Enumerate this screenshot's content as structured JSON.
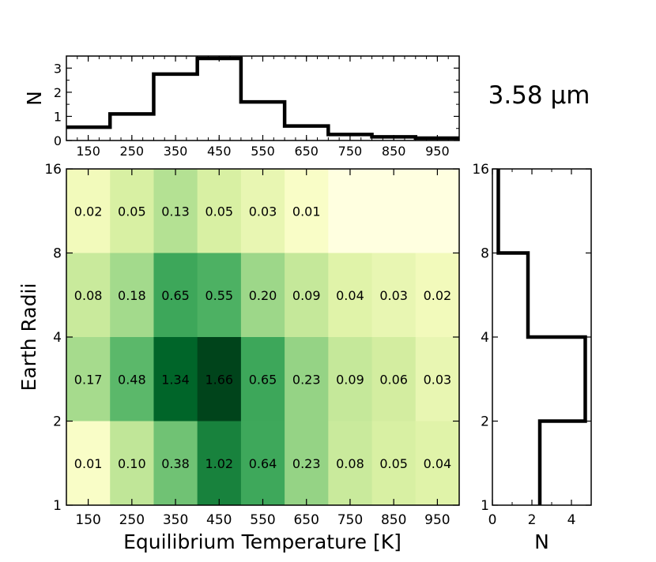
{
  "chart_data": [
    {
      "type": "heatmap",
      "title": "",
      "xlabel": "Equilibrium Temperature [K]",
      "ylabel": "Earth Radii",
      "x_tick_labels": [
        "150",
        "250",
        "350",
        "450",
        "550",
        "650",
        "750",
        "850",
        "950"
      ],
      "y_tick_labels": [
        "1",
        "2",
        "4",
        "8",
        "16"
      ],
      "x_bin_edges": [
        100,
        200,
        300,
        400,
        500,
        600,
        700,
        800,
        900,
        1000
      ],
      "y_bin_edges": [
        1,
        2,
        4,
        8,
        16
      ],
      "y_scale": "log2",
      "xlim": [
        100,
        1000
      ],
      "ylim": [
        1,
        16
      ],
      "rows": [
        {
          "y_range": [
            8,
            16
          ],
          "values": [
            "0.02",
            "0.05",
            "0.13",
            "0.05",
            "0.03",
            "0.01",
            "",
            "",
            ""
          ]
        },
        {
          "y_range": [
            4,
            8
          ],
          "values": [
            "0.08",
            "0.18",
            "0.65",
            "0.55",
            "0.20",
            "0.09",
            "0.04",
            "0.03",
            "0.02"
          ]
        },
        {
          "y_range": [
            2,
            4
          ],
          "values": [
            "0.17",
            "0.48",
            "1.34",
            "1.66",
            "0.65",
            "0.23",
            "0.09",
            "0.06",
            "0.03"
          ]
        },
        {
          "y_range": [
            1,
            2
          ],
          "values": [
            "0.01",
            "0.10",
            "0.38",
            "1.02",
            "0.64",
            "0.23",
            "0.08",
            "0.05",
            "0.04"
          ]
        }
      ],
      "colormap": "Greens",
      "color_low": "#ffffe0",
      "color_high": "#00441b",
      "vmax": 1.66
    },
    {
      "type": "step",
      "ylabel": "N",
      "x_tick_labels": [
        "150",
        "250",
        "350",
        "450",
        "550",
        "650",
        "750",
        "850",
        "950"
      ],
      "y_tick_labels": [
        "0",
        "1",
        "2",
        "3"
      ],
      "x_bin_edges": [
        100,
        200,
        300,
        400,
        500,
        600,
        700,
        800,
        900,
        1000
      ],
      "values": [
        0.55,
        1.1,
        2.75,
        3.4,
        1.6,
        0.6,
        0.25,
        0.15,
        0.1
      ],
      "xlim": [
        100,
        1000
      ],
      "ylim": [
        0,
        3.5
      ]
    },
    {
      "type": "step",
      "orientation": "horizontal",
      "xlabel": "N",
      "x_tick_labels": [
        "0",
        "2",
        "4"
      ],
      "y_tick_labels": [
        "1",
        "2",
        "4",
        "8",
        "16"
      ],
      "y_bin_edges": [
        1,
        2,
        4,
        8,
        16
      ],
      "values": [
        2.4,
        4.7,
        1.8,
        0.3
      ],
      "xlim": [
        0,
        5
      ],
      "ylim": [
        1,
        16
      ],
      "y_scale": "log2"
    }
  ],
  "figure": {
    "wavelength_label": "3.58 μm"
  }
}
